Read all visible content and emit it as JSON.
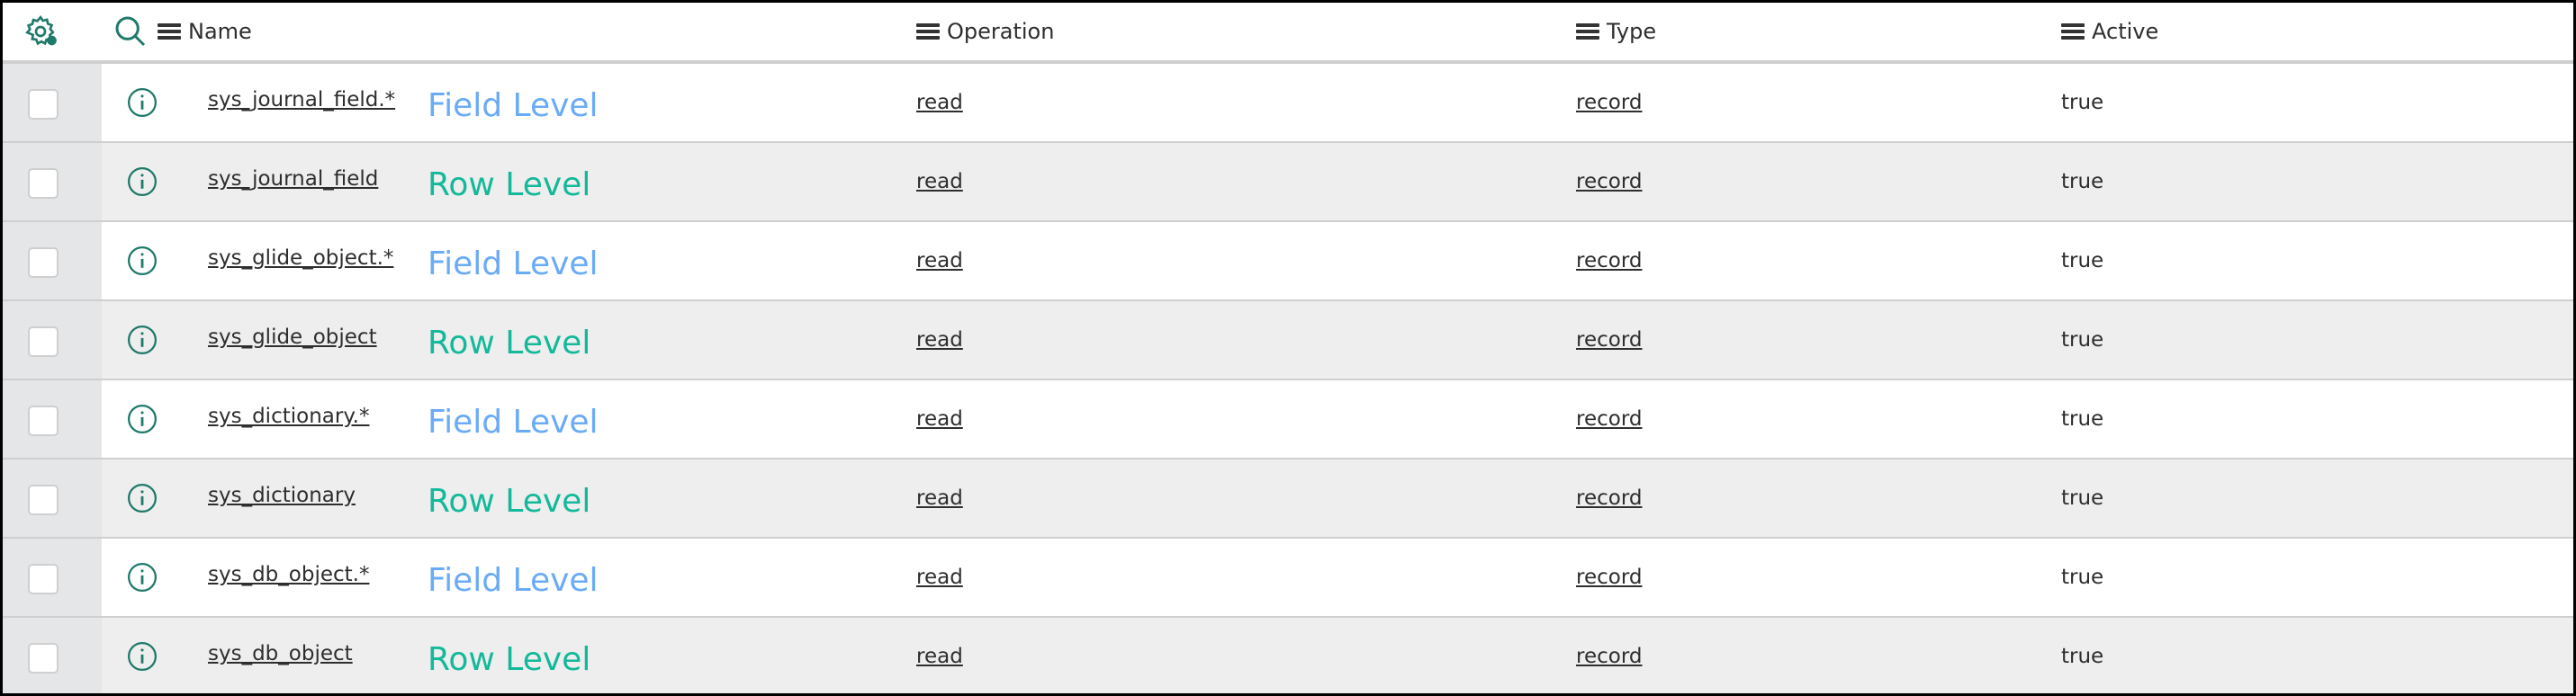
{
  "header": {
    "settings_icon": "gear-icon",
    "search_icon": "search-icon",
    "columns": [
      {
        "label": "Name"
      },
      {
        "label": "Operation"
      },
      {
        "label": "Type"
      },
      {
        "label": "Active"
      }
    ]
  },
  "colors": {
    "field_level": "#6aabf7",
    "row_level": "#13b99a",
    "icon": "#1f7a6a"
  },
  "rows": [
    {
      "name": "sys_journal_field.*",
      "level": "Field Level",
      "operation": "read",
      "type": "record",
      "active": "true"
    },
    {
      "name": "sys_journal_field",
      "level": "Row Level",
      "operation": "read",
      "type": "record",
      "active": "true"
    },
    {
      "name": "sys_glide_object.*",
      "level": "Field Level",
      "operation": "read",
      "type": "record",
      "active": "true"
    },
    {
      "name": "sys_glide_object",
      "level": "Row Level",
      "operation": "read",
      "type": "record",
      "active": "true"
    },
    {
      "name": "sys_dictionary.*",
      "level": "Field Level",
      "operation": "read",
      "type": "record",
      "active": "true"
    },
    {
      "name": "sys_dictionary",
      "level": "Row Level",
      "operation": "read",
      "type": "record",
      "active": "true"
    },
    {
      "name": "sys_db_object.*",
      "level": "Field Level",
      "operation": "read",
      "type": "record",
      "active": "true"
    },
    {
      "name": "sys_db_object",
      "level": "Row Level",
      "operation": "read",
      "type": "record",
      "active": "true"
    }
  ]
}
